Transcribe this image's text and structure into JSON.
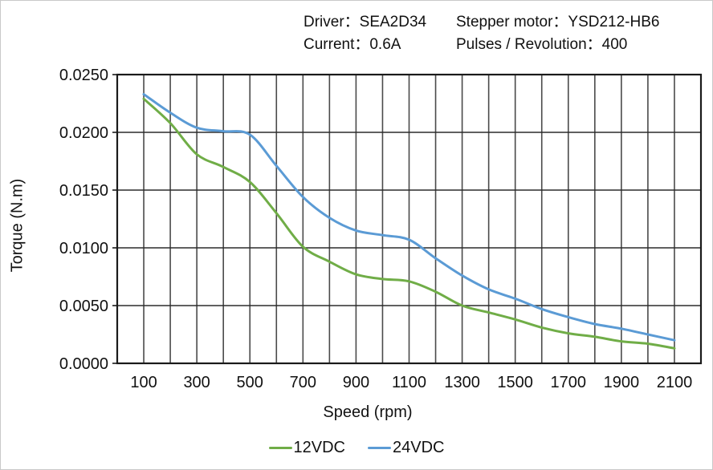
{
  "header": {
    "rows": [
      {
        "left": "Driver：SEA2D34",
        "right": "Stepper motor：YSD212-HB6"
      },
      {
        "left": "Current：0.6A",
        "right": "Pulses / Revolution：400"
      }
    ]
  },
  "chart_data": {
    "type": "line",
    "title": "",
    "xlabel": "Speed (rpm)",
    "ylabel": "Torque (N.m)",
    "xlim": [
      0,
      2200
    ],
    "ylim": [
      0,
      0.025
    ],
    "grid": {
      "on": true,
      "x_step": 100,
      "y_step": 0.005
    },
    "legend_position": "bottom",
    "x_tick_labels": [
      100,
      300,
      500,
      700,
      900,
      1100,
      1300,
      1500,
      1700,
      1900,
      2100
    ],
    "y_ticks": [
      {
        "value": 0.0,
        "label": "0.0000"
      },
      {
        "value": 0.005,
        "label": "0.0050"
      },
      {
        "value": 0.01,
        "label": "0.0100"
      },
      {
        "value": 0.015,
        "label": "0.0150"
      },
      {
        "value": 0.02,
        "label": "0.0200"
      },
      {
        "value": 0.025,
        "label": "0.0250"
      }
    ],
    "x": [
      100,
      200,
      300,
      400,
      500,
      600,
      700,
      800,
      900,
      1000,
      1100,
      1200,
      1300,
      1400,
      1500,
      1600,
      1700,
      1800,
      1900,
      2000,
      2100
    ],
    "series": [
      {
        "name": "12VDC",
        "color": "#70AD47",
        "values": [
          0.0229,
          0.0208,
          0.0181,
          0.017,
          0.0157,
          0.013,
          0.0101,
          0.0088,
          0.0077,
          0.0073,
          0.0071,
          0.0062,
          0.005,
          0.0044,
          0.0038,
          0.0031,
          0.0026,
          0.0023,
          0.0019,
          0.0017,
          0.0013
        ]
      },
      {
        "name": "24VDC",
        "color": "#5B9BD5",
        "values": [
          0.0233,
          0.0217,
          0.0204,
          0.0201,
          0.0198,
          0.0171,
          0.0144,
          0.0126,
          0.0115,
          0.0111,
          0.0107,
          0.0091,
          0.0076,
          0.0064,
          0.0056,
          0.0047,
          0.004,
          0.0034,
          0.003,
          0.0025,
          0.002
        ]
      }
    ],
    "colors": {
      "axis": "#1a1a1a",
      "grid_vertical": "#4a4a4a",
      "grid_horizontal": "#2b2b2b",
      "text": "#111111"
    }
  }
}
